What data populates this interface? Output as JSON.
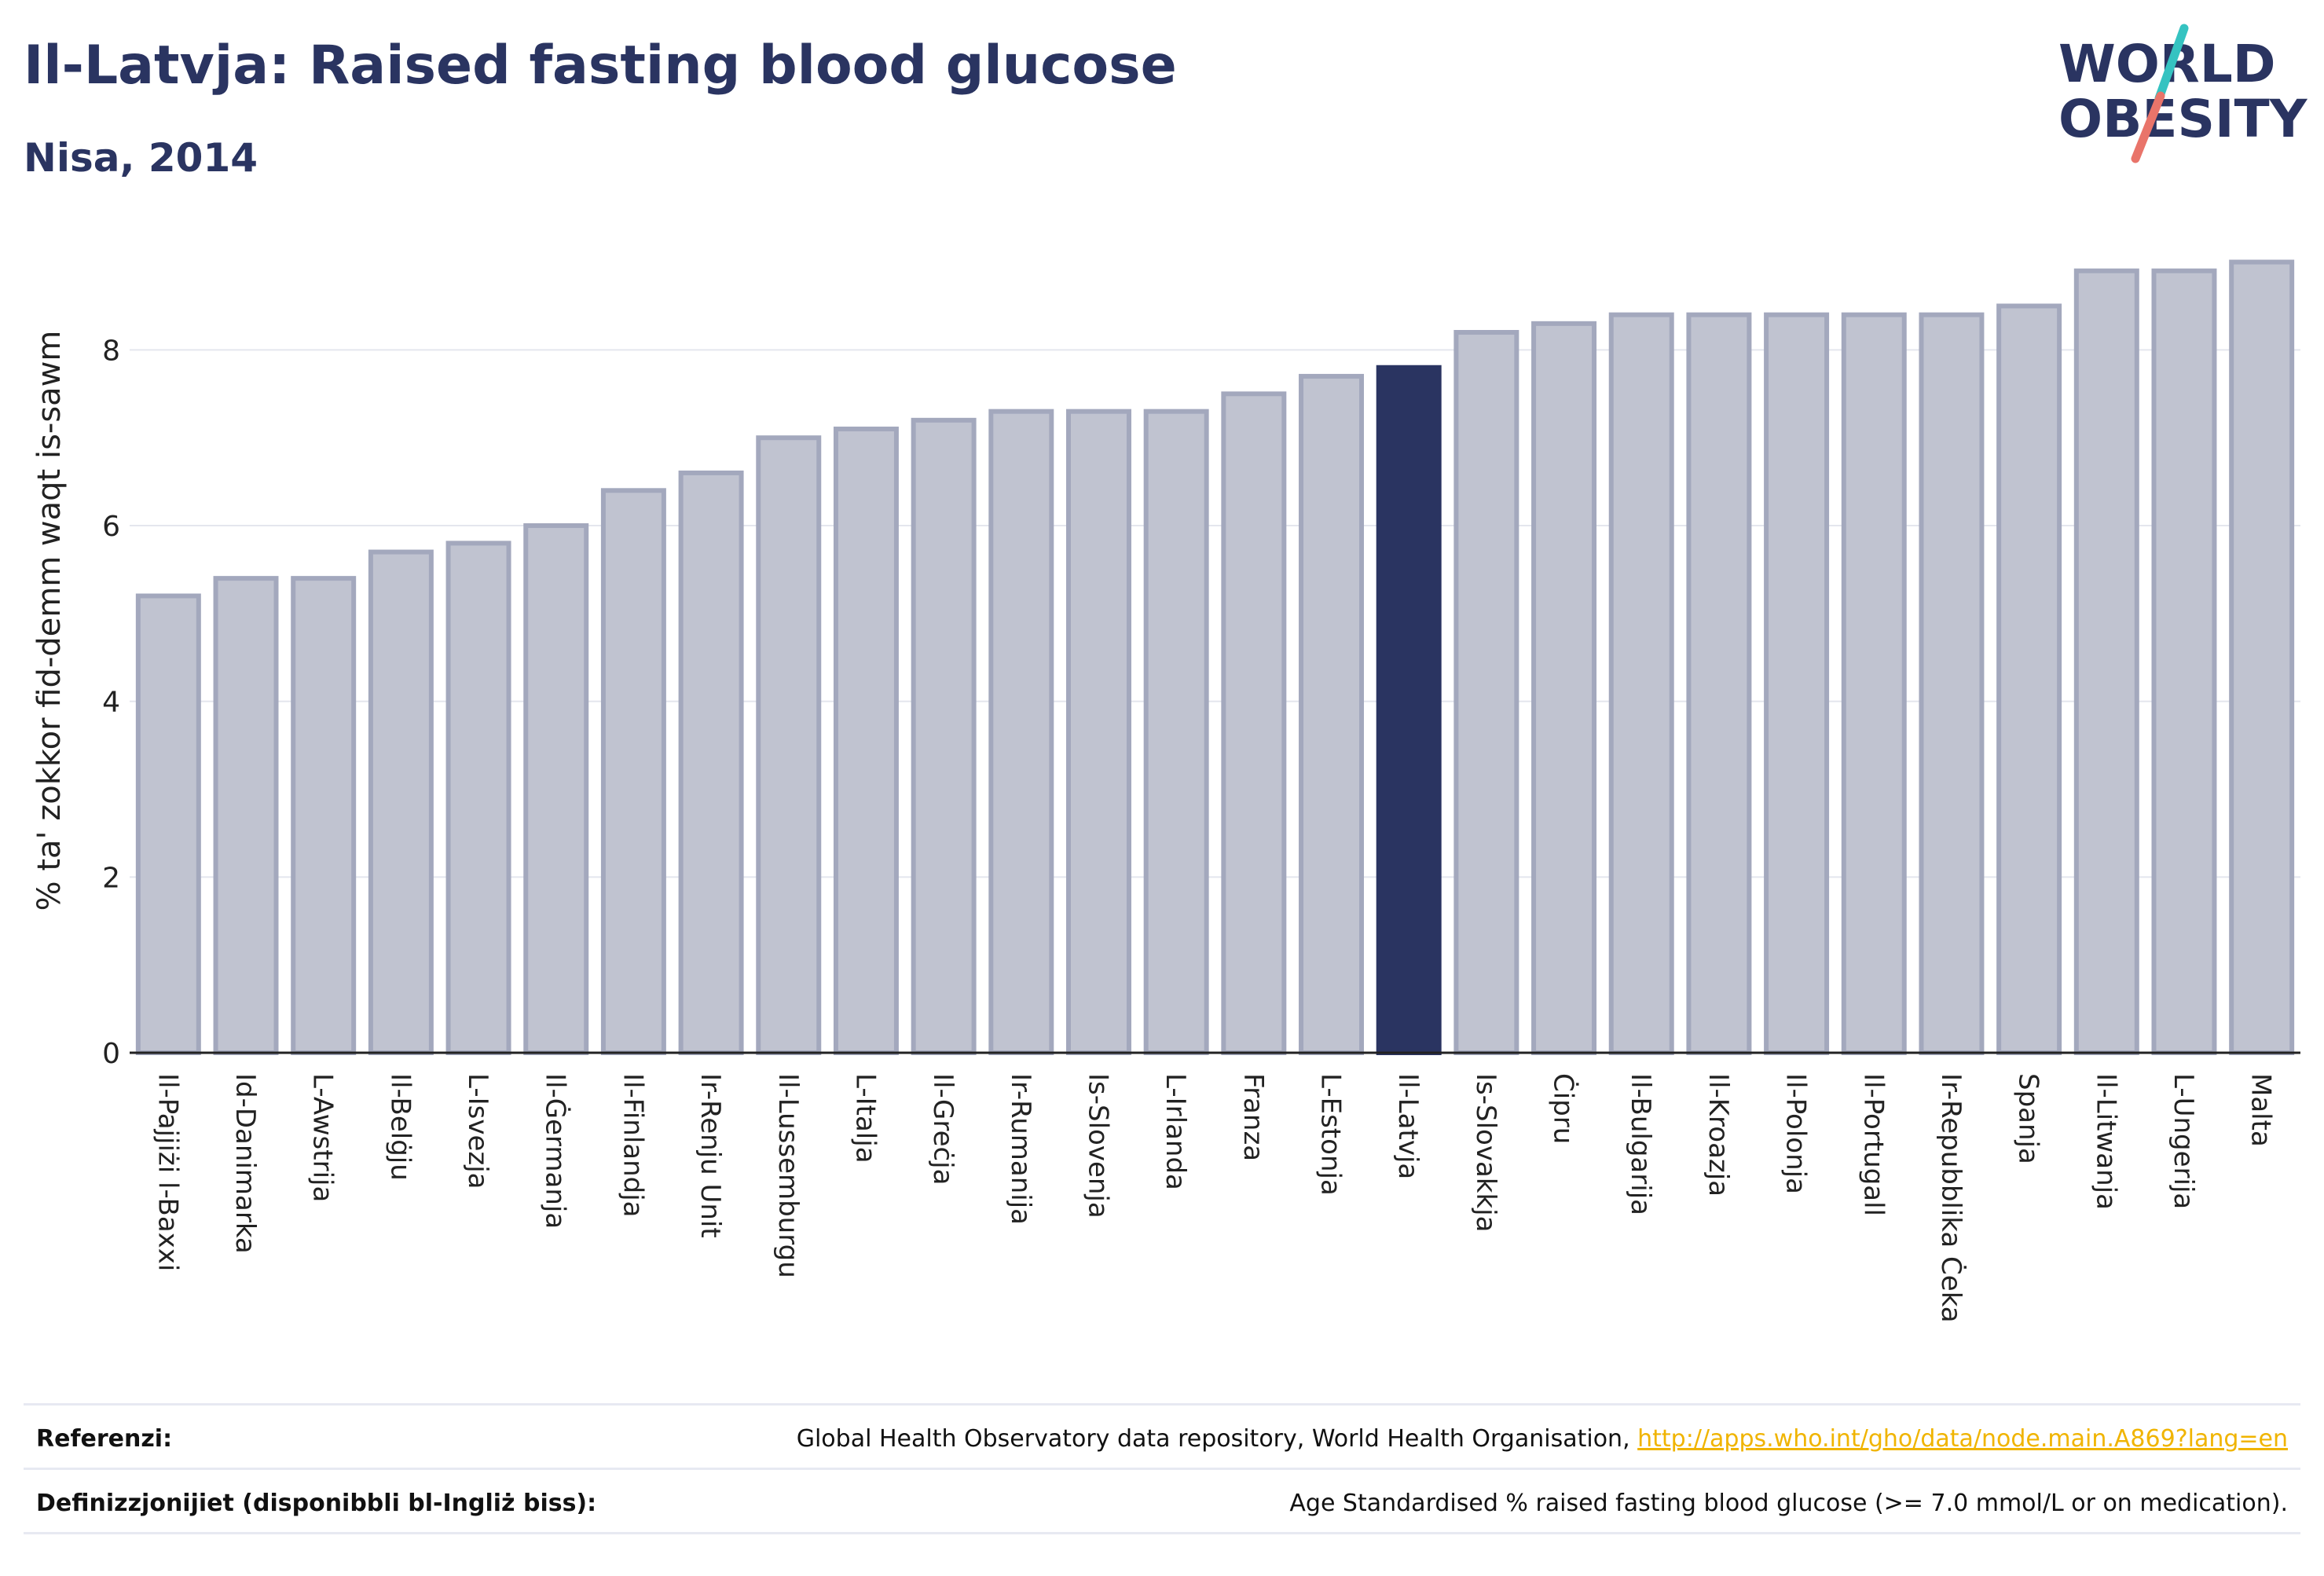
{
  "header": {
    "title": "Il-Latvja: Raised fasting blood glucose",
    "subtitle": "Nisa, 2014"
  },
  "logo": {
    "line1": "WORLD",
    "line2": "OBESITY"
  },
  "colors": {
    "bar": "#c0c3d0",
    "bar_border": "#a3a8bd",
    "highlight": "#2a3461",
    "grid": "#e4e6ee",
    "axis": "#222222",
    "logo_teal": "#35c3c1",
    "logo_coral": "#e9746a"
  },
  "chart_data": {
    "type": "bar",
    "ylabel": "% ta' zokkor fid-demm waqt is-sawm",
    "ylim": [
      0,
      9.3
    ],
    "yticks": [
      0,
      2,
      4,
      6,
      8
    ],
    "highlight": "Il-Latvja",
    "grid": true,
    "categories": [
      "Il-Pajjiżi l-Baxxi",
      "Id-Danimarka",
      "L-Awstrija",
      "Il-Belġju",
      "L-Isvezja",
      "Il-Ġermanja",
      "Il-Finlandja",
      "Ir-Renju Unit",
      "Il-Lussemburgu",
      "L-Italja",
      "Il-Greċja",
      "Ir-Rumanija",
      "Is-Slovenja",
      "L-Irlanda",
      "Franza",
      "L-Estonja",
      "Il-Latvja",
      "Is-Slovakkja",
      "Ċipru",
      "Il-Bulgarija",
      "Il-Kroazja",
      "Il-Polonja",
      "Il-Portugall",
      "Ir-Repubblika Ċeka",
      "Spanja",
      "Il-Litwanja",
      "L-Ungerija",
      "Malta"
    ],
    "values": [
      5.2,
      5.4,
      5.4,
      5.7,
      5.8,
      6.0,
      6.4,
      6.6,
      7.0,
      7.1,
      7.2,
      7.3,
      7.3,
      7.3,
      7.5,
      7.7,
      7.8,
      8.2,
      8.3,
      8.4,
      8.4,
      8.4,
      8.4,
      8.4,
      8.5,
      8.9,
      8.9,
      9.0
    ]
  },
  "footer": {
    "references_label": "Referenzi:",
    "references_text": "Global Health Observatory data repository, World Health Organisation, ",
    "references_link": "http://apps.who.int/gho/data/node.main.A869?lang=en",
    "definitions_label": "Definizzjonijiet (disponibbli bl-Ingliż biss):",
    "definitions_text": "Age Standardised % raised fasting blood glucose (>= 7.0 mmol/L or on medication)."
  }
}
